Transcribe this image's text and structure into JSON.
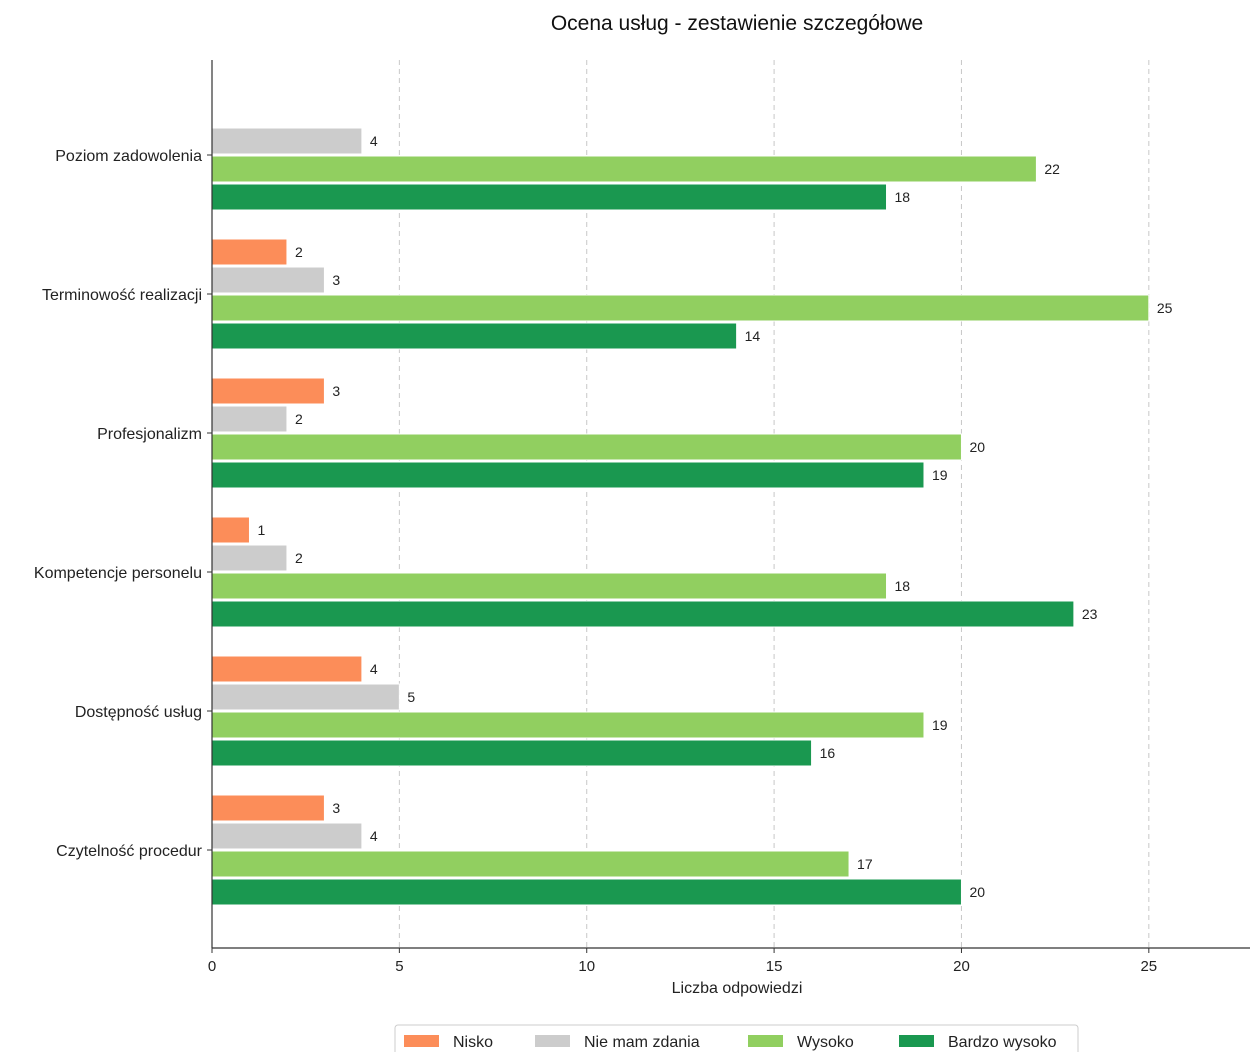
{
  "chart_data": {
    "type": "bar",
    "orientation": "horizontal",
    "title": "Ocena usług - zestawienie szczegółowe",
    "xlabel": "Liczba odpowiedzi",
    "ylabel": "",
    "xlim": [
      0,
      27.7
    ],
    "xticks": [
      0,
      5,
      10,
      15,
      20,
      25
    ],
    "grid": "x-dashed",
    "legend_position": "bottom",
    "categories": [
      "Poziom zadowolenia",
      "Terminowość realizacji",
      "Profesjonalizm",
      "Kompetencje personelu",
      "Dostępność usług",
      "Czytelność procedur"
    ],
    "series": [
      {
        "name": "Nisko",
        "color": "#fc8d59",
        "values": [
          0,
          2,
          3,
          1,
          4,
          3
        ]
      },
      {
        "name": "Nie mam zdania",
        "color": "#cccccc",
        "values": [
          4,
          3,
          2,
          2,
          5,
          4
        ]
      },
      {
        "name": "Wysoko",
        "color": "#91cf60",
        "values": [
          22,
          25,
          20,
          18,
          19,
          17
        ]
      },
      {
        "name": "Bardzo wysoko",
        "color": "#1a9850",
        "values": [
          18,
          14,
          19,
          23,
          16,
          20
        ]
      }
    ]
  }
}
